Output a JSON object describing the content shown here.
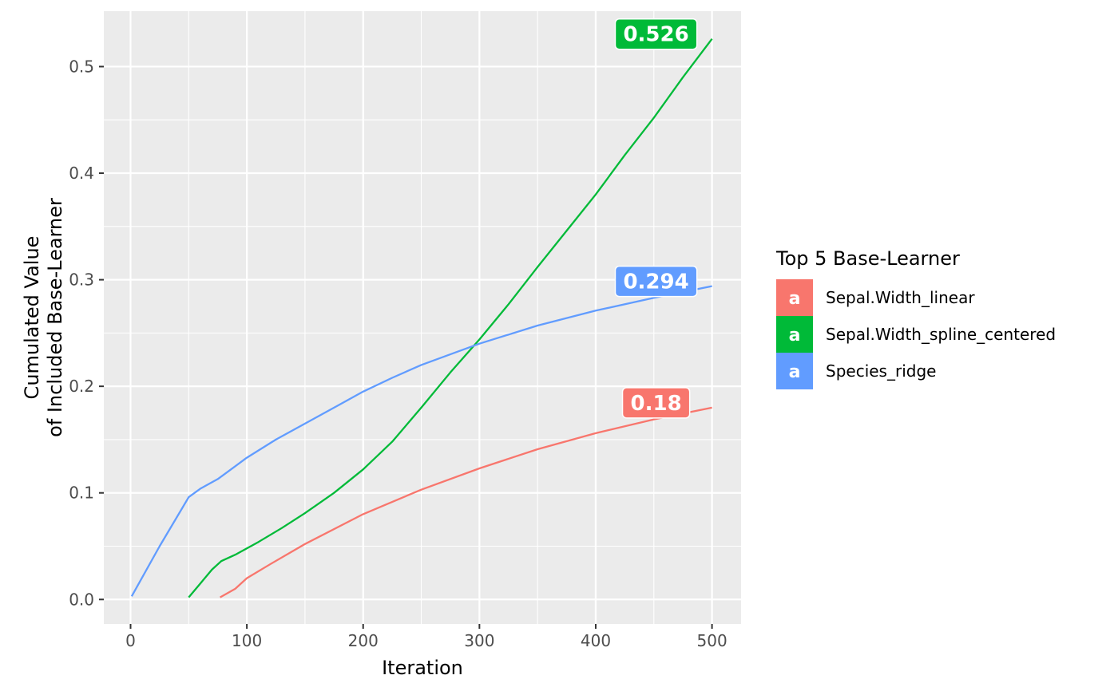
{
  "chart_data": {
    "type": "line",
    "title": "",
    "xlabel": "Iteration",
    "ylabel": [
      "Cumulated Value",
      "of Included Base-Learner"
    ],
    "xlim": [
      -23,
      525
    ],
    "ylim": [
      -0.023,
      0.552
    ],
    "x_ticks": [
      0,
      100,
      200,
      300,
      400,
      500
    ],
    "x_tick_labels": [
      "0",
      "100",
      "200",
      "300",
      "400",
      "500"
    ],
    "y_ticks": [
      0.0,
      0.1,
      0.2,
      0.3,
      0.4,
      0.5
    ],
    "y_tick_labels": [
      "0.0",
      "0.1",
      "0.2",
      "0.3",
      "0.4",
      "0.5"
    ],
    "grid": true,
    "legend": {
      "title": "Top 5 Base-Learner",
      "placement": "right",
      "key_letter": "a"
    },
    "series": [
      {
        "name": "Sepal.Width_linear",
        "color": "#F8766D",
        "end_label": "0.18",
        "x": [
          77,
          90,
          100,
          120,
          150,
          200,
          250,
          300,
          350,
          400,
          450,
          500
        ],
        "y": [
          0.002,
          0.01,
          0.02,
          0.033,
          0.052,
          0.08,
          0.103,
          0.123,
          0.141,
          0.156,
          0.169,
          0.18
        ]
      },
      {
        "name": "Sepal.Width_spline_centered",
        "color": "#00BA38",
        "end_label": "0.526",
        "x": [
          50,
          60,
          70,
          78,
          90,
          100,
          110,
          130,
          150,
          175,
          200,
          225,
          250,
          275,
          300,
          325,
          350,
          375,
          400,
          425,
          450,
          475,
          500
        ],
        "y": [
          0.002,
          0.015,
          0.028,
          0.036,
          0.042,
          0.048,
          0.054,
          0.067,
          0.081,
          0.1,
          0.122,
          0.148,
          0.18,
          0.213,
          0.244,
          0.277,
          0.312,
          0.346,
          0.38,
          0.417,
          0.452,
          0.49,
          0.526
        ]
      },
      {
        "name": "Species_ridge",
        "color": "#619CFF",
        "end_label": "0.294",
        "x": [
          1,
          25,
          50,
          60,
          75,
          90,
          100,
          125,
          150,
          175,
          200,
          225,
          250,
          275,
          300,
          350,
          400,
          450,
          500
        ],
        "y": [
          0.003,
          0.05,
          0.096,
          0.104,
          0.113,
          0.125,
          0.133,
          0.15,
          0.165,
          0.18,
          0.195,
          0.208,
          0.22,
          0.23,
          0.24,
          0.257,
          0.271,
          0.283,
          0.294
        ]
      }
    ]
  },
  "colors": {
    "panel_background": "#EBEBEB",
    "grid_major": "#FFFFFF",
    "tick_text": "#4D4D4D"
  }
}
